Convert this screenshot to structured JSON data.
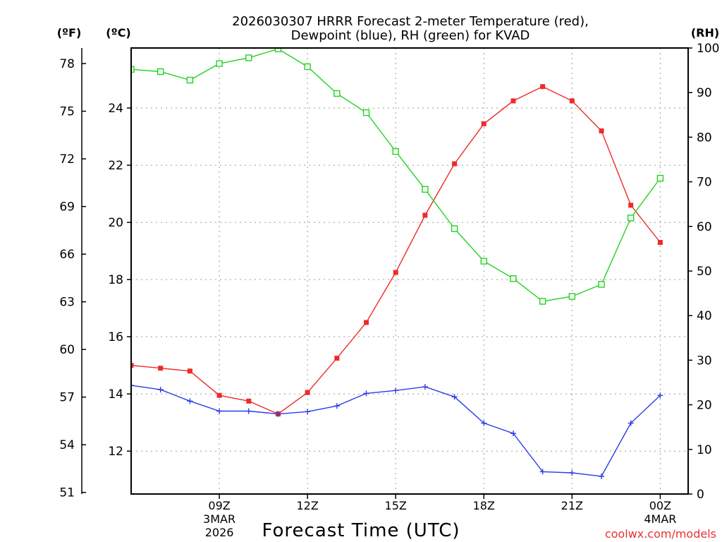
{
  "chart_data": {
    "type": "line",
    "title": {
      "line1": "2026030307 HRRR Forecast 2-meter Temperature (red),",
      "line2": "Dewpoint (blue), RH (green) for KVAD"
    },
    "xlabel": "Forecast Time (UTC)",
    "unit_labels": {
      "left_outer": "(ºF)",
      "left_inner": "(ºC)",
      "right": "(RH)"
    },
    "credit": "coolwx.com/models",
    "x": [
      6,
      7,
      8,
      9,
      10,
      11,
      12,
      13,
      14,
      15,
      16,
      17,
      18,
      19,
      20,
      21,
      22,
      23,
      24,
      25
    ],
    "xlim": [
      6,
      24.95
    ],
    "x_ticks": [
      {
        "x": 9,
        "label": "09Z",
        "date": "3MAR",
        "year": "2026"
      },
      {
        "x": 12,
        "label": "12Z"
      },
      {
        "x": 15,
        "label": "15Z"
      },
      {
        "x": 18,
        "label": "18Z"
      },
      {
        "x": 21,
        "label": "21Z"
      },
      {
        "x": 24,
        "label": "00Z",
        "date": "4MAR"
      }
    ],
    "y_celsius": {
      "lim": [
        10.5,
        26.1
      ],
      "ticks": [
        "12",
        "14",
        "16",
        "18",
        "20",
        "22",
        "24"
      ]
    },
    "y_fahrenheit": {
      "ticks": [
        "51",
        "54",
        "57",
        "60",
        "63",
        "66",
        "69",
        "72",
        "75",
        "78"
      ]
    },
    "y_rh": {
      "lim": [
        0,
        100
      ],
      "ticks": [
        "0",
        "10",
        "20",
        "30",
        "40",
        "50",
        "60",
        "70",
        "80",
        "90",
        "100"
      ]
    },
    "series": [
      {
        "name": "Temperature",
        "units": "°C",
        "color": "#ee2a2a",
        "axis": "celsius",
        "marker": "filled-square",
        "values": [
          15.0,
          14.9,
          14.8,
          13.95,
          13.75,
          13.3,
          14.05,
          15.25,
          16.5,
          18.25,
          20.25,
          22.05,
          23.45,
          24.25,
          24.75,
          24.25,
          23.2,
          20.6,
          19.3,
          null
        ]
      },
      {
        "name": "Dewpoint",
        "units": "°C",
        "color": "#2a3ee8",
        "axis": "celsius",
        "marker": "plus",
        "values": [
          14.3,
          14.15,
          13.75,
          13.4,
          13.4,
          13.3,
          13.38,
          13.58,
          14.02,
          14.12,
          14.25,
          13.9,
          12.98,
          12.62,
          11.28,
          11.24,
          11.12,
          12.98,
          13.95,
          null
        ]
      },
      {
        "name": "RH",
        "units": "%",
        "color": "#22d322",
        "axis": "rh",
        "marker": "open-square",
        "values": [
          95.2,
          94.7,
          92.8,
          96.5,
          97.8,
          99.8,
          95.8,
          89.8,
          85.5,
          76.8,
          68.3,
          59.5,
          52.2,
          48.3,
          43.2,
          44.3,
          47.0,
          61.9,
          70.8,
          null
        ]
      }
    ]
  }
}
